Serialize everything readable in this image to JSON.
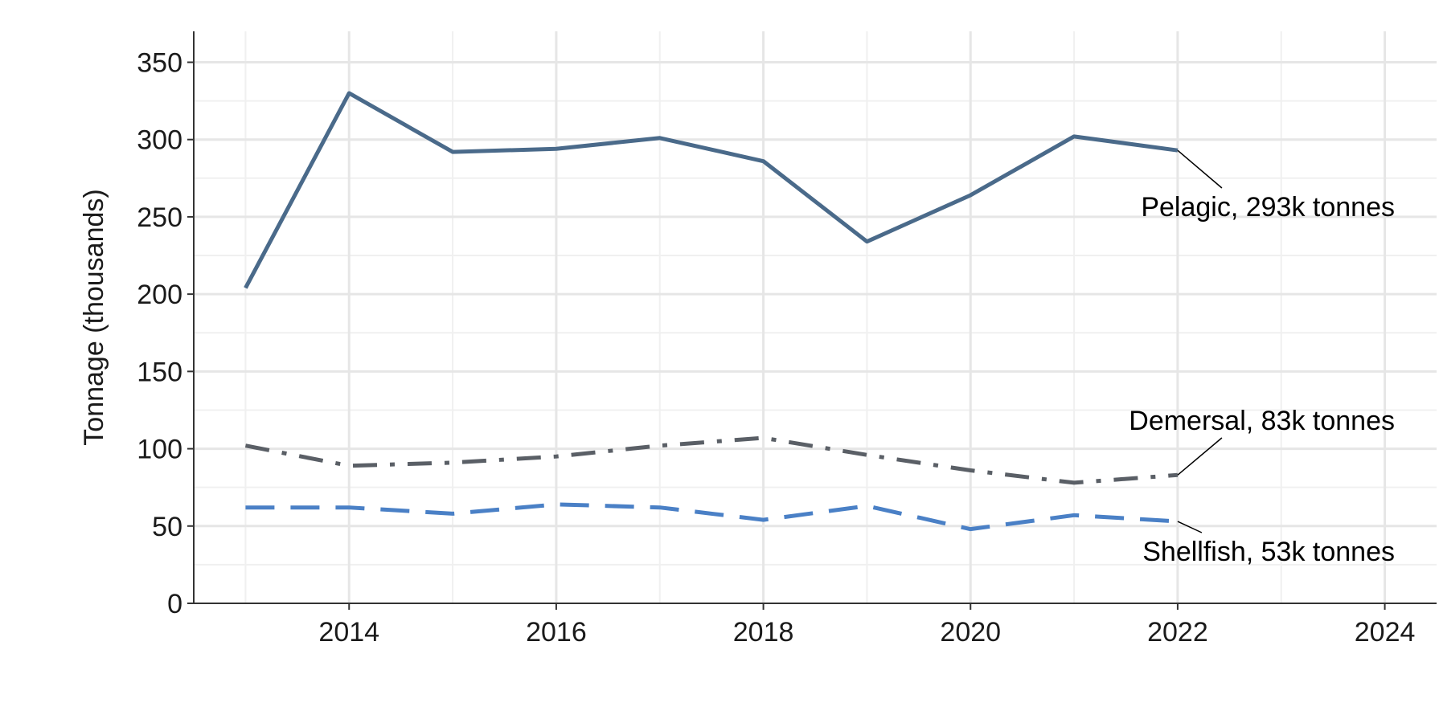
{
  "chart_data": {
    "type": "line",
    "title": "",
    "xlabel": "",
    "ylabel": "Tonnage (thousands)",
    "xlim": [
      2012.5,
      2024.5
    ],
    "ylim": [
      0,
      370
    ],
    "x_ticks": [
      2014,
      2016,
      2018,
      2020,
      2022,
      2024
    ],
    "x_tick_labels": [
      "2014",
      "2016",
      "2018",
      "2020",
      "2022",
      "2024"
    ],
    "y_ticks": [
      0,
      50,
      100,
      150,
      200,
      250,
      300,
      350
    ],
    "y_tick_labels": [
      "0",
      "50",
      "100",
      "150",
      "200",
      "250",
      "300",
      "350"
    ],
    "grid": true,
    "legend": "none",
    "x": [
      2013,
      2014,
      2015,
      2016,
      2017,
      2018,
      2019,
      2020,
      2021,
      2022
    ],
    "series": [
      {
        "key": "pelagic",
        "values": [
          204,
          330,
          292,
          294,
          301,
          286,
          234,
          264,
          302,
          293
        ],
        "color": "#4a6a8a",
        "dash": "solid",
        "label": "Pelagic, 293k tonnes"
      },
      {
        "key": "demersal",
        "values": [
          102,
          89,
          91,
          95,
          102,
          107,
          96,
          86,
          78,
          83
        ],
        "color": "#5a5f66",
        "dash": "dashdot",
        "label": "Demersal, 83k tonnes"
      },
      {
        "key": "shellfish",
        "values": [
          62,
          62,
          58,
          64,
          62,
          54,
          63,
          48,
          57,
          53
        ],
        "color": "#4a80c6",
        "dash": "dashed",
        "label": "Shellfish, 53k tonnes"
      }
    ]
  }
}
